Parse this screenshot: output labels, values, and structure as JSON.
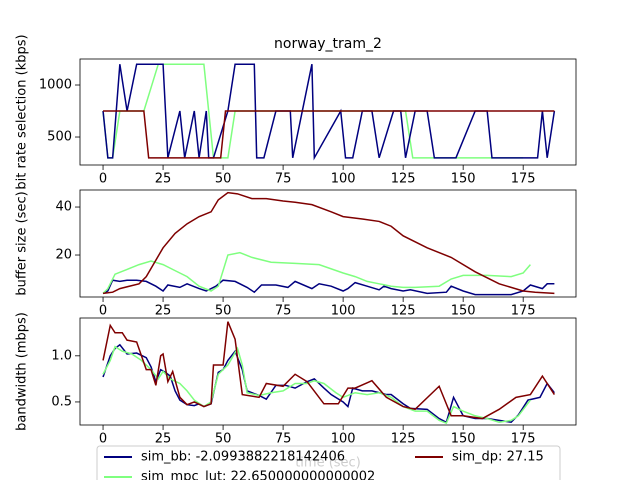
{
  "chart_data": [
    {
      "type": "line",
      "title": "norway_tram_2",
      "ylabel": "bit rate selection (kbps)",
      "xlim": [
        -9.6,
        197
      ],
      "ylim": [
        231,
        1250
      ],
      "xticks": [
        0,
        25,
        50,
        75,
        100,
        125,
        150,
        175
      ],
      "yticks": [
        500,
        1000
      ],
      "series": [
        {
          "color": "#7fff7f",
          "x": [
            0,
            2,
            4,
            7,
            17,
            23,
            28,
            42,
            46,
            52,
            55,
            126,
            129,
            175
          ],
          "values": [
            750,
            300,
            300,
            750,
            750,
            1200,
            1200,
            1200,
            300,
            300,
            750,
            750,
            300,
            300
          ]
        },
        {
          "color": "#00007f",
          "x": [
            0,
            2,
            4,
            7,
            10,
            14,
            25,
            27,
            32,
            34,
            38,
            40,
            43,
            44,
            46,
            52,
            55,
            63,
            64,
            67,
            72,
            78,
            79,
            87,
            88,
            99,
            101,
            104,
            108,
            112,
            115,
            121,
            124,
            126,
            130,
            135,
            138,
            147,
            155,
            160,
            162,
            178,
            181,
            183,
            185,
            188
          ],
          "values": [
            750,
            300,
            300,
            1200,
            750,
            1200,
            1200,
            300,
            750,
            300,
            750,
            300,
            750,
            300,
            300,
            750,
            1200,
            1200,
            300,
            300,
            750,
            750,
            300,
            1200,
            300,
            750,
            300,
            300,
            750,
            750,
            300,
            750,
            750,
            300,
            750,
            750,
            300,
            300,
            750,
            750,
            300,
            300,
            300,
            750,
            300,
            750
          ]
        },
        {
          "color": "#7f0000",
          "x": [
            0,
            17,
            19,
            49,
            51,
            188
          ],
          "values": [
            750,
            750,
            300,
            300,
            750,
            750
          ]
        }
      ]
    },
    {
      "type": "line",
      "ylabel": "buffer size (sec)",
      "xlim": [
        -9.6,
        197
      ],
      "ylim": [
        2.5,
        47.1
      ],
      "xticks": [
        0,
        25,
        50,
        75,
        100,
        125,
        150,
        175
      ],
      "yticks": [
        20,
        40
      ],
      "series": [
        {
          "color": "#00007f",
          "x": [
            0,
            2,
            4,
            7,
            10,
            14,
            18,
            22,
            25,
            27,
            32,
            35,
            40,
            43,
            47,
            50,
            55,
            60,
            63,
            66,
            72,
            77,
            80,
            87,
            90,
            95,
            100,
            102,
            105,
            110,
            115,
            117,
            120,
            125,
            128,
            135,
            143,
            145,
            150,
            155,
            170,
            175,
            178,
            183,
            185,
            188
          ],
          "values": [
            4,
            5,
            9.5,
            9,
            9.5,
            9.5,
            9,
            7,
            5,
            7.5,
            6.5,
            8,
            6,
            5,
            7,
            9.5,
            9,
            6.5,
            4.5,
            7.5,
            7.5,
            6.5,
            9,
            6,
            8,
            7,
            5,
            6,
            8.5,
            7,
            5.5,
            7,
            6,
            5,
            5.5,
            4,
            4.5,
            7,
            5,
            3.5,
            3.5,
            5,
            7.5,
            6,
            8,
            8
          ]
        },
        {
          "color": "#7fff7f",
          "x": [
            0,
            2,
            5,
            10,
            15,
            20,
            25,
            30,
            35,
            40,
            45,
            48,
            52,
            57,
            62,
            70,
            80,
            90,
            100,
            105,
            110,
            115,
            120,
            125,
            130,
            140,
            145,
            150,
            160,
            170,
            175,
            178
          ],
          "values": [
            4,
            6,
            12,
            14,
            16,
            17.5,
            16,
            13.5,
            11,
            7,
            5,
            7,
            20,
            21,
            19,
            17,
            16.5,
            16,
            12.5,
            11,
            9,
            8,
            7,
            6.5,
            6.5,
            7,
            10,
            11.5,
            11.5,
            11,
            12.5,
            16
          ]
        },
        {
          "color": "#7f0000",
          "x": [
            0,
            4,
            7,
            15,
            18,
            25,
            30,
            35,
            40,
            45,
            48,
            52,
            56,
            62,
            68,
            75,
            80,
            87,
            95,
            100,
            108,
            115,
            120,
            125,
            135,
            145,
            155,
            165,
            175,
            180,
            188
          ],
          "values": [
            4,
            4.5,
            6,
            8,
            11,
            23,
            29,
            33,
            36,
            38,
            43,
            46,
            45.5,
            43.5,
            43.5,
            42.5,
            42,
            41,
            38,
            36,
            35,
            34,
            32,
            28,
            23,
            19,
            13,
            8,
            5,
            4.5,
            4
          ]
        }
      ]
    },
    {
      "type": "line",
      "ylabel": "bandwidth (mbps)",
      "xlabel": "time (sec)",
      "xlim": [
        -9.6,
        197
      ],
      "ylim": [
        0.25,
        1.41
      ],
      "xticks": [
        0,
        25,
        50,
        75,
        100,
        125,
        150,
        175
      ],
      "yticks": [
        0.5,
        {
          "value": 1,
          "label": "1.0"
        }
      ],
      "series": [
        {
          "color": "#00007f",
          "x": [
            0,
            3,
            5,
            7,
            10,
            14,
            18,
            20,
            22,
            24,
            26,
            28,
            30,
            32,
            35,
            38,
            40,
            42,
            45,
            48,
            50,
            52,
            55,
            58,
            60,
            65,
            68,
            72,
            76,
            80,
            85,
            88,
            92,
            95,
            100,
            102,
            104,
            108,
            112,
            118,
            120,
            125,
            128,
            135,
            140,
            143,
            146,
            150,
            155,
            160,
            165,
            170,
            173,
            177,
            182,
            185,
            188
          ],
          "values": [
            0.77,
            1.0,
            1.08,
            1.12,
            1.02,
            1.03,
            0.98,
            0.88,
            0.72,
            0.85,
            0.82,
            0.78,
            0.62,
            0.52,
            0.47,
            0.46,
            0.48,
            0.45,
            0.48,
            0.82,
            0.85,
            0.95,
            1.05,
            0.85,
            0.62,
            0.57,
            0.53,
            0.68,
            0.68,
            0.65,
            0.72,
            0.75,
            0.65,
            0.58,
            0.5,
            0.45,
            0.65,
            0.62,
            0.62,
            0.58,
            0.58,
            0.48,
            0.43,
            0.42,
            0.32,
            0.28,
            0.55,
            0.35,
            0.32,
            0.32,
            0.3,
            0.28,
            0.36,
            0.52,
            0.55,
            0.7,
            0.6
          ]
        },
        {
          "color": "#7fff7f",
          "x": [
            0,
            3,
            5,
            8,
            12,
            16,
            20,
            23,
            25,
            28,
            32,
            35,
            38,
            42,
            45,
            48,
            52,
            56,
            58,
            60,
            65,
            70,
            75,
            80,
            85,
            88,
            92,
            97,
            100,
            105,
            110,
            115,
            120,
            125,
            130,
            135,
            140,
            143,
            146,
            150,
            155,
            160,
            165,
            170,
            173,
            178
          ],
          "values": [
            0.8,
            0.95,
            1.1,
            1.05,
            1.02,
            0.95,
            0.85,
            0.75,
            0.83,
            0.75,
            0.7,
            0.62,
            0.52,
            0.45,
            0.5,
            0.8,
            0.9,
            1.08,
            0.9,
            0.6,
            0.57,
            0.6,
            0.62,
            0.7,
            0.7,
            0.73,
            0.7,
            0.6,
            0.55,
            0.6,
            0.58,
            0.6,
            0.55,
            0.45,
            0.4,
            0.4,
            0.3,
            0.27,
            0.45,
            0.4,
            0.35,
            0.32,
            0.28,
            0.3,
            0.35,
            0.52
          ]
        },
        {
          "color": "#7f0000",
          "x": [
            0,
            3,
            5,
            8,
            10,
            14,
            18,
            20,
            22,
            24,
            25,
            27,
            29,
            32,
            35,
            38,
            42,
            45,
            46,
            50,
            52,
            55,
            58,
            65,
            68,
            75,
            80,
            85,
            92,
            98,
            102,
            105,
            112,
            118,
            125,
            130,
            140,
            145,
            150,
            158,
            165,
            172,
            178,
            183,
            188
          ],
          "values": [
            0.95,
            1.33,
            1.25,
            1.25,
            1.17,
            1.15,
            0.85,
            0.85,
            0.68,
            1.0,
            1.02,
            0.72,
            0.83,
            0.55,
            0.47,
            0.5,
            0.45,
            0.48,
            0.9,
            0.9,
            1.37,
            1.18,
            0.58,
            0.55,
            0.7,
            0.67,
            0.8,
            0.72,
            0.48,
            0.48,
            0.65,
            0.65,
            0.73,
            0.55,
            0.45,
            0.42,
            0.67,
            0.35,
            0.35,
            0.32,
            0.42,
            0.55,
            0.58,
            0.78,
            0.58
          ]
        }
      ]
    }
  ],
  "legend": {
    "entries": [
      "sim_bb: -2.0993882218142406",
      "sim_mpc_lut: 22.650000000000002",
      "sim_dp: 27.15"
    ],
    "colors": [
      "#00007f",
      "#7fff7f",
      "#7f0000"
    ]
  }
}
